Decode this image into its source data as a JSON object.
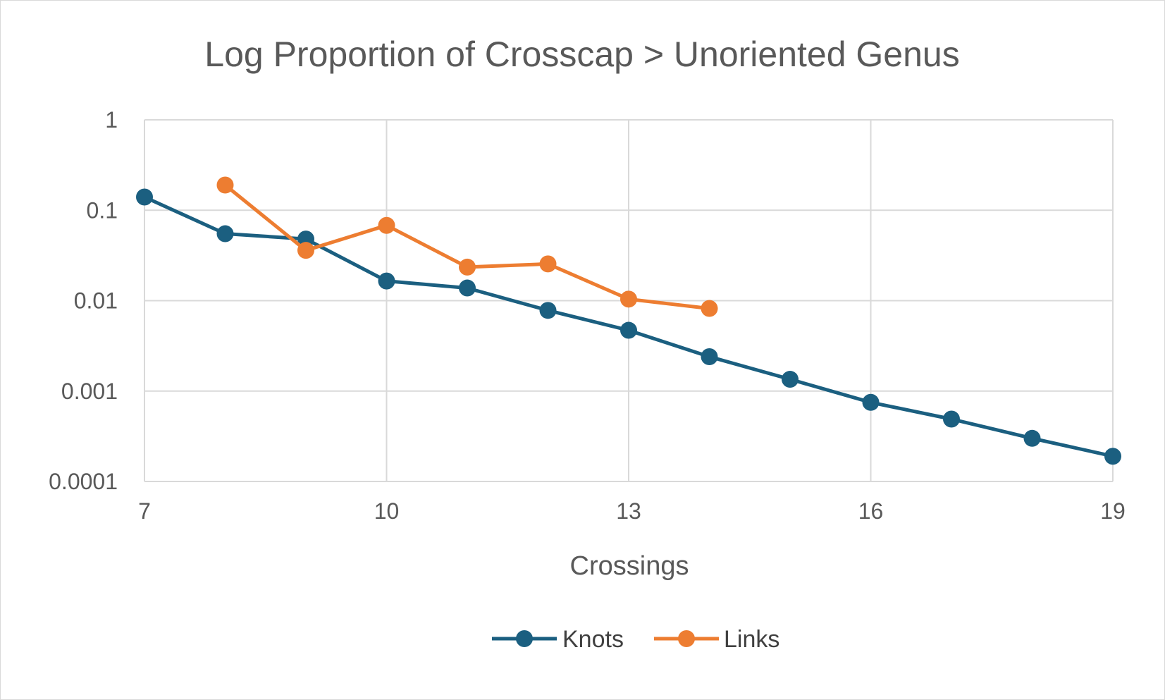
{
  "chart_data": {
    "type": "line",
    "title": "Log Proportion of Crosscap > Unoriented Genus",
    "xlabel": "Crossings",
    "ylabel": "",
    "y_scale": "log",
    "xlim": [
      7,
      19
    ],
    "ylim": [
      0.0001,
      1
    ],
    "x_ticks": [
      7,
      10,
      13,
      16,
      19
    ],
    "x_tick_labels": [
      "7",
      "10",
      "13",
      "16",
      "19"
    ],
    "y_ticks": [
      1,
      0.1,
      0.01,
      0.001,
      0.0001
    ],
    "y_tick_labels": [
      "1",
      "0.1",
      "0.01",
      "0.001",
      "0.0001"
    ],
    "grid": true,
    "legend_position": "bottom",
    "series": [
      {
        "name": "Knots",
        "color": "#1b5f80",
        "x": [
          7,
          8,
          9,
          10,
          11,
          12,
          13,
          14,
          15,
          16,
          17,
          18,
          19
        ],
        "y": [
          0.14,
          0.055,
          0.048,
          0.0165,
          0.0138,
          0.0078,
          0.0047,
          0.0024,
          0.00135,
          0.00075,
          0.00049,
          0.0003,
          0.00019
        ]
      },
      {
        "name": "Links",
        "color": "#ed7d31",
        "x": [
          8,
          9,
          10,
          11,
          12,
          13,
          14
        ],
        "y": [
          0.19,
          0.036,
          0.068,
          0.0235,
          0.0255,
          0.0104,
          0.0082
        ]
      }
    ]
  }
}
